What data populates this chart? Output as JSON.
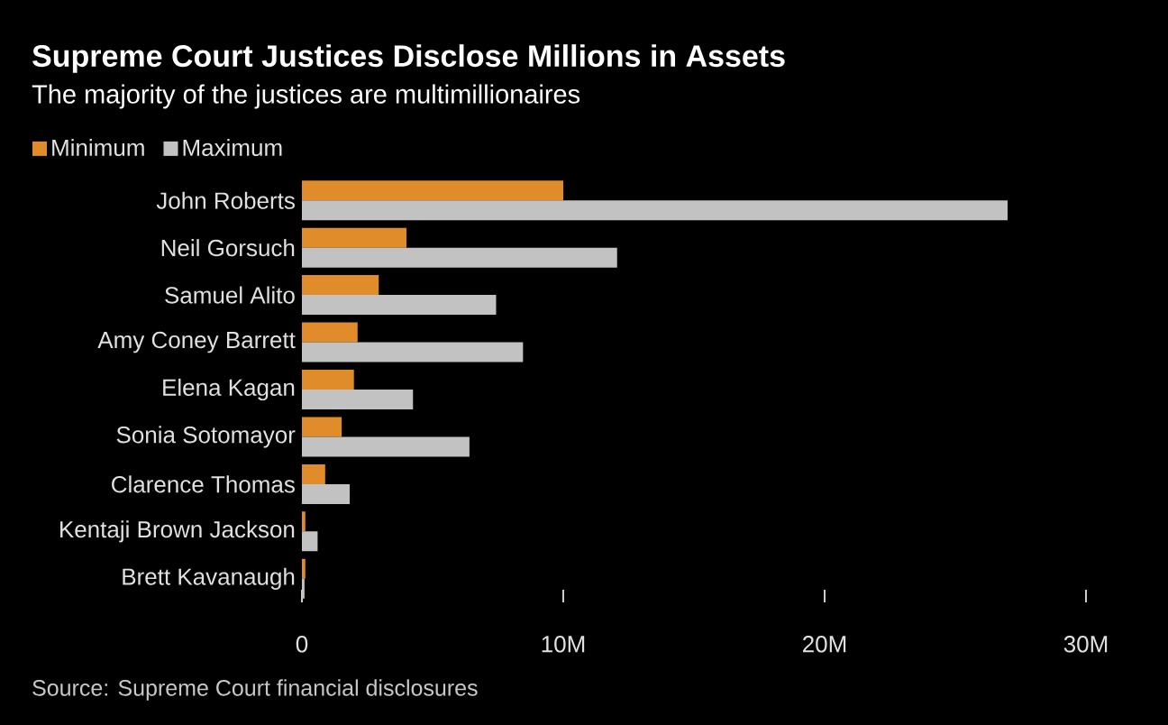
{
  "chart_data": {
    "type": "bar",
    "orientation": "horizontal",
    "title": "Supreme Court Justices Disclose Millions in Assets",
    "subtitle": "The majority of the justices are multimillionaires",
    "categories": [
      "John Roberts",
      "Neil Gorsuch",
      "Samuel Alito",
      "Amy Coney Barrett",
      "Elena Kagan",
      "Sonia Sotomayor",
      "Clarence Thomas",
      "Kentaji Brown Jackson",
      "Brett Kavanaugh"
    ],
    "series": [
      {
        "name": "Minimum",
        "color": "#e08c2a",
        "values": [
          10.0,
          4.0,
          2.94,
          2.13,
          1.99,
          1.52,
          0.89,
          0.13,
          0.13
        ]
      },
      {
        "name": "Maximum",
        "color": "#c2c2c2",
        "values": [
          27.0,
          12.06,
          7.43,
          8.46,
          4.25,
          6.41,
          1.83,
          0.6,
          0.1
        ]
      }
    ],
    "xlim": [
      0,
      30
    ],
    "xticks": [
      {
        "value": 0,
        "label": "0"
      },
      {
        "value": 10,
        "label": "10M"
      },
      {
        "value": 20,
        "label": "20M"
      },
      {
        "value": 30,
        "label": "30M"
      }
    ],
    "legend": "top left",
    "annotations": [
      "Source: Supreme Court financial disclosures"
    ]
  }
}
